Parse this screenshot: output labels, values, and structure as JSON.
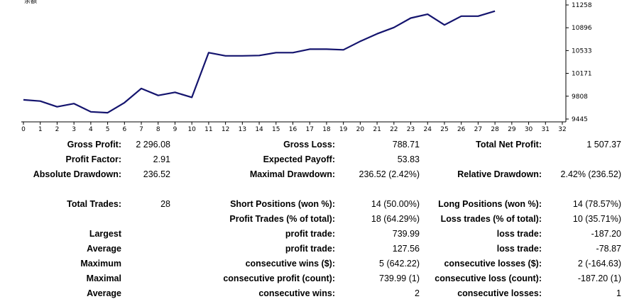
{
  "chart_data": {
    "type": "line",
    "corner_label": "余额",
    "x": [
      0,
      1,
      2,
      3,
      4,
      5,
      6,
      7,
      8,
      9,
      10,
      11,
      12,
      13,
      14,
      15,
      16,
      17,
      18,
      19,
      20,
      21,
      22,
      23,
      24,
      25,
      26,
      27,
      28
    ],
    "y": [
      9750,
      9730,
      9640,
      9690,
      9560,
      9545,
      9705,
      9930,
      9820,
      9870,
      9790,
      10500,
      10450,
      10450,
      10455,
      10500,
      10500,
      10555,
      10555,
      10545,
      10680,
      10800,
      10900,
      11050,
      11110,
      10940,
      11080,
      11080,
      11160
    ],
    "x_ticks": [
      "0",
      "1",
      "2",
      "3",
      "4",
      "5",
      "6",
      "7",
      "8",
      "9",
      "10",
      "11",
      "12",
      "13",
      "14",
      "15",
      "16",
      "17",
      "18",
      "19",
      "20",
      "21",
      "22",
      "23",
      "24",
      "25",
      "26",
      "27",
      "28",
      "29",
      "30",
      "31",
      "32"
    ],
    "y_ticks": [
      "11258",
      "10896",
      "10533",
      "10171",
      "9808",
      "9445"
    ],
    "y_tick_values": [
      11258,
      10896,
      10533,
      10171,
      9808,
      9445
    ],
    "xlim": [
      0,
      32
    ],
    "ylim": [
      9420,
      11300
    ],
    "line_color": "#14146e",
    "grid": false
  },
  "report": {
    "r1": {
      "c1": {
        "label": "Gross Profit:",
        "value": "2 296.08"
      },
      "c2": {
        "label": "Gross Loss:",
        "value": "788.71"
      },
      "c3": {
        "label": "Total Net Profit:",
        "value": "1 507.37"
      }
    },
    "r2": {
      "c1": {
        "label": "Profit Factor:",
        "value": "2.91"
      },
      "c2": {
        "label": "Expected Payoff:",
        "value": "53.83"
      }
    },
    "r3": {
      "c1": {
        "label": "Absolute Drawdown:",
        "value": "236.52"
      },
      "c2": {
        "label": "Maximal Drawdown:",
        "value": "236.52 (2.42%)"
      },
      "c3": {
        "label": "Relative Drawdown:",
        "value": "2.42% (236.52)"
      }
    },
    "r4": {
      "c1": {
        "label": "Total Trades:",
        "value": "28"
      },
      "c2": {
        "label": "Short Positions (won %):",
        "value": "14 (50.00%)"
      },
      "c3": {
        "label": "Long Positions (won %):",
        "value": "14 (78.57%)"
      }
    },
    "r5": {
      "c2": {
        "label": "Profit Trades (% of total):",
        "value": "18 (64.29%)"
      },
      "c3": {
        "label": "Loss trades (% of total):",
        "value": "10 (35.71%)"
      }
    },
    "r6": {
      "c1": {
        "label": "Largest"
      },
      "c2": {
        "label": "profit trade:",
        "value": "739.99"
      },
      "c3": {
        "label": "loss trade:",
        "value": "-187.20"
      }
    },
    "r7": {
      "c1": {
        "label": "Average"
      },
      "c2": {
        "label": "profit trade:",
        "value": "127.56"
      },
      "c3": {
        "label": "loss trade:",
        "value": "-78.87"
      }
    },
    "r8": {
      "c1": {
        "label": "Maximum"
      },
      "c2": {
        "label": "consecutive wins ($):",
        "value": "5 (642.22)"
      },
      "c3": {
        "label": "consecutive losses ($):",
        "value": "2 (-164.63)"
      }
    },
    "r9": {
      "c1": {
        "label": "Maximal"
      },
      "c2": {
        "label": "consecutive profit (count):",
        "value": "739.99 (1)"
      },
      "c3": {
        "label": "consecutive loss (count):",
        "value": "-187.20 (1)"
      }
    },
    "r10": {
      "c1": {
        "label": "Average"
      },
      "c2": {
        "label": "consecutive wins:",
        "value": "2"
      },
      "c3": {
        "label": "consecutive losses:",
        "value": "1"
      }
    }
  }
}
